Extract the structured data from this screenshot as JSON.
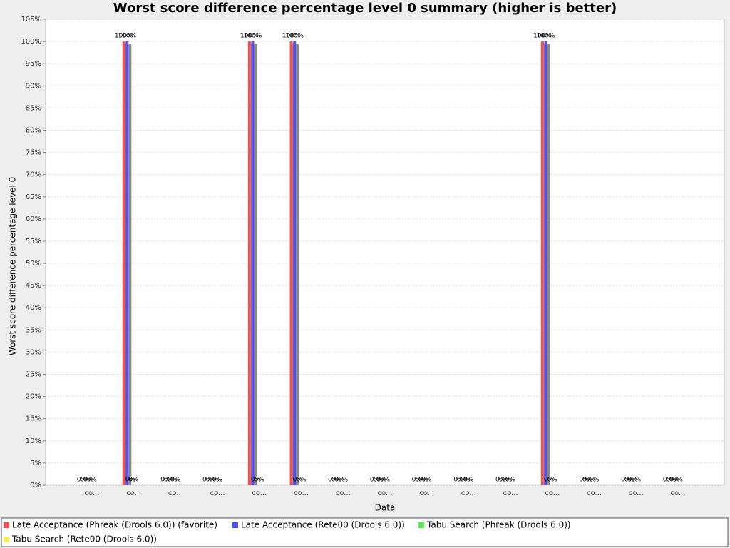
{
  "chart_data": {
    "type": "bar",
    "title": "Worst score difference percentage level 0 summary (higher is better)",
    "x_label": "Data",
    "y_label": "Worst score difference percentage level 0",
    "categories": [
      "co...",
      "co...",
      "co...",
      "co...",
      "co...",
      "co...",
      "co...",
      "co...",
      "co...",
      "co...",
      "co...",
      "co...",
      "co...",
      "co...",
      "co..."
    ],
    "series": [
      {
        "name": "Late Acceptance (Phreak (Drools 6.0)) (favorite)",
        "color": "#f05050",
        "values": [
          0,
          100,
          0,
          0,
          100,
          100,
          0,
          0,
          0,
          0,
          0,
          100,
          0,
          0,
          0
        ],
        "value_labels": [
          "0%",
          "100%",
          "0%",
          "0%",
          "100%",
          "100%",
          "0%",
          "0%",
          "0%",
          "0%",
          "0%",
          "100%",
          "0%",
          "0%",
          "0%"
        ]
      },
      {
        "name": "Late Acceptance (Rete00 (Drools 6.0))",
        "color": "#5050f0",
        "values": [
          0,
          100,
          0,
          0,
          100,
          100,
          0,
          0,
          0,
          0,
          0,
          100,
          0,
          0,
          0
        ],
        "value_labels": [
          "0%",
          "100%",
          "0%",
          "0%",
          "100%",
          "100%",
          "0%",
          "0%",
          "0%",
          "0%",
          "0%",
          "100%",
          "0%",
          "0%",
          "0%"
        ]
      },
      {
        "name": "Tabu Search (Phreak (Drools 6.0))",
        "color": "#50f050",
        "values": [
          0,
          0,
          0,
          0,
          0,
          0,
          0,
          0,
          0,
          0,
          0,
          0,
          0,
          0,
          0
        ],
        "value_labels": [
          "0%",
          "0%",
          "0%",
          "0%",
          "0%",
          "0%",
          "0%",
          "0%",
          "0%",
          "0%",
          "0%",
          "0%",
          "0%",
          "0%",
          "0%"
        ]
      },
      {
        "name": "Tabu Search (Rete00 (Drools 6.0))",
        "color": "#f0f050",
        "values": [
          0,
          0,
          0,
          0,
          0,
          0,
          0,
          0,
          0,
          0,
          0,
          0,
          0,
          0,
          0
        ],
        "value_labels": [
          "0%",
          "0%",
          "0%",
          "0%",
          "0%",
          "0%",
          "0%",
          "0%",
          "0%",
          "0%",
          "0%",
          "0%",
          "0%",
          "0%",
          "0%"
        ]
      }
    ],
    "ylim": [
      0,
      105
    ],
    "yticks": [
      {
        "value": 0,
        "label": "0%"
      },
      {
        "value": 5,
        "label": "5%"
      },
      {
        "value": 10,
        "label": "10%"
      },
      {
        "value": 15,
        "label": "15%"
      },
      {
        "value": 20,
        "label": "20%"
      },
      {
        "value": 25,
        "label": "25%"
      },
      {
        "value": 30,
        "label": "30%"
      },
      {
        "value": 35,
        "label": "35%"
      },
      {
        "value": 40,
        "label": "40%"
      },
      {
        "value": 45,
        "label": "45%"
      },
      {
        "value": 50,
        "label": "50%"
      },
      {
        "value": 55,
        "label": "55%"
      },
      {
        "value": 60,
        "label": "60%"
      },
      {
        "value": 65,
        "label": "65%"
      },
      {
        "value": 70,
        "label": "70%"
      },
      {
        "value": 75,
        "label": "75%"
      },
      {
        "value": 80,
        "label": "80%"
      },
      {
        "value": 85,
        "label": "85%"
      },
      {
        "value": 90,
        "label": "90%"
      },
      {
        "value": 95,
        "label": "95%"
      },
      {
        "value": 100,
        "label": "100%"
      },
      {
        "value": 105,
        "label": "105%"
      }
    ],
    "grid": true,
    "legend": "bottom"
  }
}
